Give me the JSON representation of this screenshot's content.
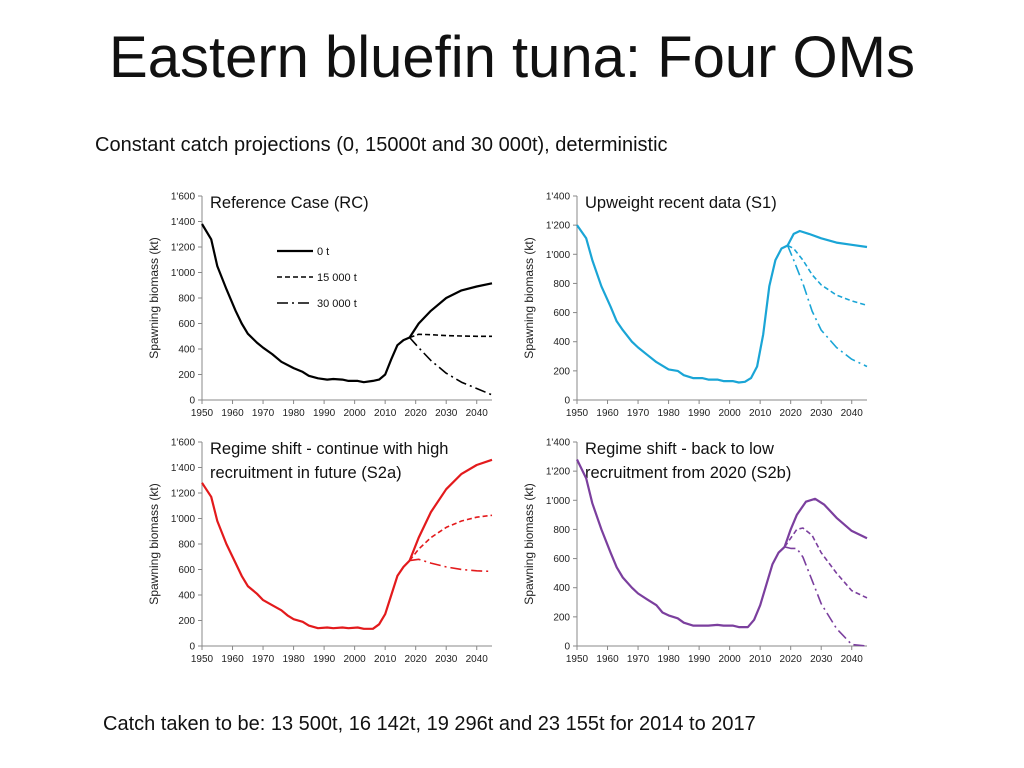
{
  "title": "Eastern bluefin tuna: Four OMs",
  "subtitle": "Constant catch projections (0, 15000t and 30 000t), deterministic",
  "footer": "Catch taken to be: 13 500t, 16 142t, 19 296t and 23 155t for 2014 to 2017",
  "chart_data": [
    {
      "type": "line",
      "title_lines": [
        "Reference Case (RC)"
      ],
      "ylabel": "Spawning biomass (kt)",
      "xlim": [
        1950,
        2045
      ],
      "xticks": [
        1950,
        1960,
        1970,
        1980,
        1990,
        2000,
        2010,
        2020,
        2030,
        2040
      ],
      "ylim": [
        0,
        1600
      ],
      "yticks": [
        0,
        200,
        400,
        600,
        800,
        1000,
        1200,
        1400,
        1600
      ],
      "ytick_labels": [
        "0",
        "200",
        "400",
        "600",
        "800",
        "1'000",
        "1'200",
        "1'400",
        "1'600"
      ],
      "color": "#000000",
      "legend": [
        "0 t",
        "15 000 t",
        "30 000 t"
      ],
      "history": {
        "x": [
          1950,
          1953,
          1955,
          1958,
          1961,
          1963,
          1965,
          1968,
          1970,
          1973,
          1976,
          1980,
          1983,
          1985,
          1988,
          1991,
          1993,
          1996,
          1998,
          2001,
          2003,
          2006,
          2008,
          2010,
          2012,
          2014,
          2016,
          2018
        ],
        "y": [
          1380,
          1260,
          1050,
          870,
          700,
          600,
          520,
          450,
          410,
          360,
          300,
          250,
          220,
          190,
          170,
          160,
          165,
          160,
          150,
          150,
          140,
          150,
          160,
          200,
          320,
          430,
          470,
          490
        ]
      },
      "series": [
        {
          "name": "0 t",
          "x": [
            2018,
            2021,
            2025,
            2030,
            2035,
            2040,
            2045
          ],
          "y": [
            490,
            600,
            700,
            800,
            860,
            890,
            915
          ]
        },
        {
          "name": "15 000 t",
          "x": [
            2018,
            2021,
            2025,
            2030,
            2035,
            2040,
            2045
          ],
          "y": [
            490,
            515,
            512,
            505,
            502,
            500,
            500
          ]
        },
        {
          "name": "30 000 t",
          "x": [
            2018,
            2021,
            2025,
            2030,
            2035,
            2040,
            2045
          ],
          "y": [
            490,
            410,
            310,
            210,
            140,
            90,
            40
          ]
        }
      ]
    },
    {
      "type": "line",
      "title_lines": [
        "Upweight recent data (S1)"
      ],
      "ylabel": "Spawning biomass (kt)",
      "xlim": [
        1950,
        2045
      ],
      "xticks": [
        1950,
        1960,
        1970,
        1980,
        1990,
        2000,
        2010,
        2020,
        2030,
        2040
      ],
      "ylim": [
        0,
        1400
      ],
      "yticks": [
        0,
        200,
        400,
        600,
        800,
        1000,
        1200,
        1400
      ],
      "ytick_labels": [
        "0",
        "200",
        "400",
        "600",
        "800",
        "1'000",
        "1'200",
        "1'400"
      ],
      "color": "#1aa5d6",
      "history": {
        "x": [
          1950,
          1953,
          1955,
          1958,
          1961,
          1963,
          1965,
          1968,
          1970,
          1973,
          1976,
          1980,
          1983,
          1985,
          1988,
          1991,
          1993,
          1996,
          1998,
          2001,
          2003,
          2005,
          2007,
          2009,
          2011,
          2013,
          2015,
          2017,
          2019
        ],
        "y": [
          1200,
          1110,
          960,
          780,
          640,
          540,
          480,
          400,
          360,
          310,
          260,
          210,
          200,
          170,
          150,
          150,
          140,
          140,
          130,
          130,
          120,
          125,
          150,
          230,
          450,
          780,
          960,
          1040,
          1060
        ]
      },
      "series": [
        {
          "name": "0 t",
          "x": [
            2019,
            2021,
            2023,
            2026,
            2030,
            2035,
            2040,
            2045
          ],
          "y": [
            1060,
            1140,
            1160,
            1140,
            1110,
            1080,
            1065,
            1050
          ]
        },
        {
          "name": "15 000 t",
          "x": [
            2019,
            2021,
            2024,
            2027,
            2030,
            2035,
            2040,
            2045
          ],
          "y": [
            1060,
            1040,
            960,
            860,
            790,
            720,
            680,
            650
          ]
        },
        {
          "name": "30 000 t",
          "x": [
            2019,
            2021,
            2024,
            2027,
            2030,
            2035,
            2040,
            2045
          ],
          "y": [
            1060,
            960,
            800,
            610,
            480,
            360,
            280,
            230
          ]
        }
      ]
    },
    {
      "type": "line",
      "title_lines": [
        "Regime shift - continue with high",
        "recruitment in future (S2a)"
      ],
      "ylabel": "Spawning biomass (kt)",
      "xlim": [
        1950,
        2045
      ],
      "xticks": [
        1950,
        1960,
        1970,
        1980,
        1990,
        2000,
        2010,
        2020,
        2030,
        2040
      ],
      "ylim": [
        0,
        1600
      ],
      "yticks": [
        0,
        200,
        400,
        600,
        800,
        1000,
        1200,
        1400,
        1600
      ],
      "ytick_labels": [
        "0",
        "200",
        "400",
        "600",
        "800",
        "1'000",
        "1'200",
        "1'400",
        "1'600"
      ],
      "color": "#e31a1c",
      "history": {
        "x": [
          1950,
          1953,
          1955,
          1958,
          1961,
          1963,
          1965,
          1968,
          1970,
          1973,
          1976,
          1978,
          1980,
          1983,
          1985,
          1988,
          1991,
          1993,
          1996,
          1998,
          2001,
          2003,
          2006,
          2008,
          2010,
          2012,
          2014,
          2016,
          2018
        ],
        "y": [
          1280,
          1170,
          980,
          800,
          650,
          550,
          470,
          410,
          360,
          320,
          280,
          240,
          210,
          190,
          160,
          140,
          145,
          140,
          145,
          140,
          145,
          135,
          135,
          170,
          250,
          400,
          550,
          620,
          670
        ]
      },
      "series": [
        {
          "name": "0 t",
          "x": [
            2018,
            2021,
            2025,
            2030,
            2035,
            2040,
            2045
          ],
          "y": [
            670,
            850,
            1050,
            1230,
            1350,
            1420,
            1460
          ]
        },
        {
          "name": "15 000 t",
          "x": [
            2018,
            2021,
            2025,
            2030,
            2035,
            2040,
            2045
          ],
          "y": [
            670,
            760,
            850,
            930,
            980,
            1010,
            1025
          ]
        },
        {
          "name": "30 000 t",
          "x": [
            2018,
            2021,
            2025,
            2030,
            2035,
            2040,
            2045
          ],
          "y": [
            670,
            680,
            650,
            620,
            600,
            590,
            585
          ]
        }
      ]
    },
    {
      "type": "line",
      "title_lines": [
        "Regime shift - back to low",
        "recruitment from 2020 (S2b)"
      ],
      "ylabel": "Spawning biomass (kt)",
      "xlim": [
        1950,
        2045
      ],
      "xticks": [
        1950,
        1960,
        1970,
        1980,
        1990,
        2000,
        2010,
        2020,
        2030,
        2040
      ],
      "ylim": [
        0,
        1400
      ],
      "yticks": [
        0,
        200,
        400,
        600,
        800,
        1000,
        1200,
        1400
      ],
      "ytick_labels": [
        "0",
        "200",
        "400",
        "600",
        "800",
        "1'000",
        "1'200",
        "1'400"
      ],
      "color": "#7b3f9e",
      "history": {
        "x": [
          1950,
          1953,
          1955,
          1958,
          1961,
          1963,
          1965,
          1968,
          1970,
          1973,
          1976,
          1978,
          1980,
          1983,
          1985,
          1988,
          1991,
          1993,
          1996,
          1998,
          2001,
          2003,
          2006,
          2008,
          2010,
          2012,
          2014,
          2016,
          2018
        ],
        "y": [
          1280,
          1150,
          980,
          800,
          640,
          540,
          470,
          400,
          360,
          320,
          280,
          230,
          210,
          190,
          160,
          140,
          140,
          140,
          145,
          140,
          140,
          130,
          130,
          180,
          280,
          420,
          560,
          640,
          680
        ]
      },
      "series": [
        {
          "name": "0 t",
          "x": [
            2018,
            2020,
            2022,
            2025,
            2028,
            2031,
            2035,
            2040,
            2045
          ],
          "y": [
            680,
            800,
            900,
            990,
            1010,
            970,
            880,
            790,
            740
          ]
        },
        {
          "name": "15 000 t",
          "x": [
            2018,
            2020,
            2022,
            2024,
            2027,
            2030,
            2035,
            2040,
            2045
          ],
          "y": [
            680,
            740,
            800,
            810,
            760,
            640,
            500,
            380,
            330
          ]
        },
        {
          "name": "30 000 t",
          "x": [
            2018,
            2020,
            2022,
            2024,
            2027,
            2030,
            2035,
            2040,
            2045
          ],
          "y": [
            680,
            670,
            670,
            610,
            450,
            290,
            120,
            10,
            0
          ]
        }
      ]
    }
  ]
}
